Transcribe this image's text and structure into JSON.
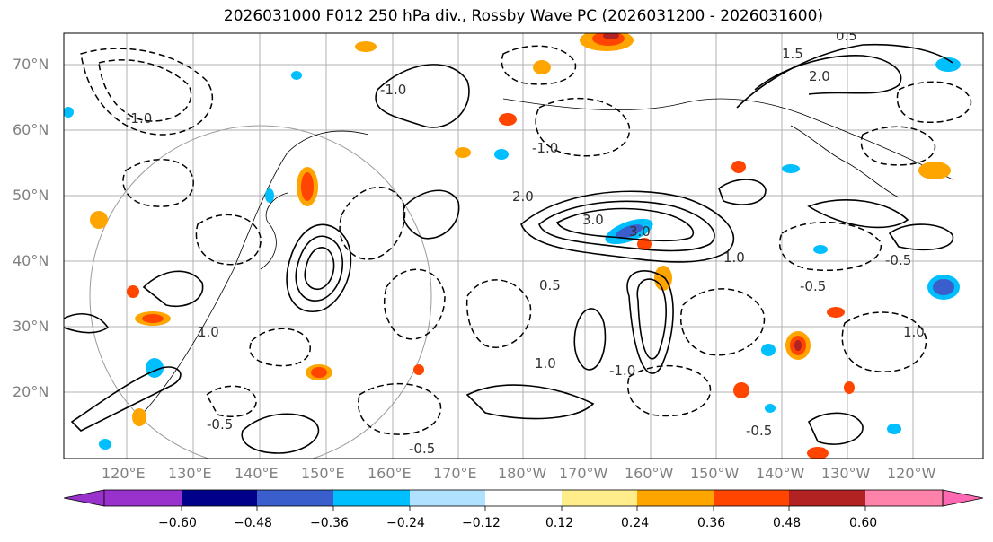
{
  "title": "2026031000 F012 250 hPa div., Rossby Wave PC (2026031200 - 2026031600)",
  "lat_labels": [
    "70°N",
    "60°N",
    "50°N",
    "40°N",
    "30°N",
    "20°N"
  ],
  "lon_labels": [
    "120°E",
    "130°E",
    "140°E",
    "150°E",
    "160°E",
    "170°E",
    "180°W",
    "170°W",
    "160°W",
    "150°W",
    "140°W",
    "130°W",
    "120°W"
  ],
  "contour_labels": [
    "0.5",
    "1.0",
    "1.5",
    "2.0",
    "3.0",
    "-0.5",
    "-1.0"
  ],
  "colorbar": {
    "ticks": [
      "−0.60",
      "−0.48",
      "−0.36",
      "−0.24",
      "−0.12",
      "0.12",
      "0.24",
      "0.36",
      "0.48",
      "0.60"
    ],
    "colors": [
      "#9932cc",
      "#00008b",
      "#3a5fcd",
      "#00bfff",
      "#b0e2ff",
      "#ffffff",
      "#ffec8b",
      "#ffa500",
      "#ff4500",
      "#b22222",
      "#ff82ab",
      "#ff69b4"
    ]
  },
  "colors": {
    "grid": "#b0b0b0",
    "contour": "#000000",
    "label": "#808080"
  }
}
